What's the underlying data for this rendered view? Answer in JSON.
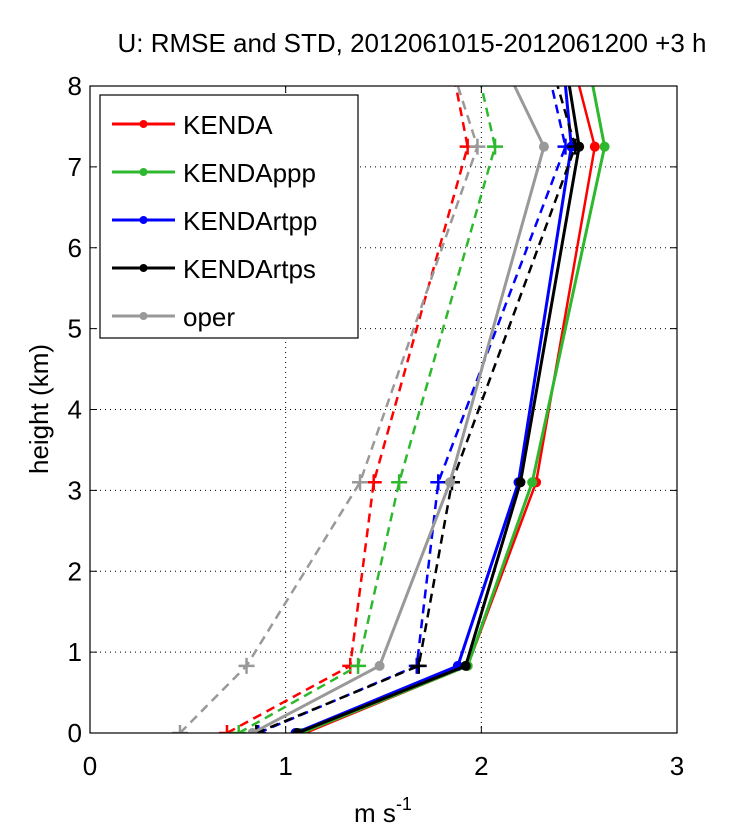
{
  "chart_data": {
    "type": "line",
    "title": "U: RMSE and STD, 2012061015-2012061200 +3 h",
    "xlabel": "m s",
    "xlabel_superscript": "-1",
    "ylabel": "height (km)",
    "xlim": [
      0,
      3
    ],
    "ylim": [
      0,
      8
    ],
    "xticks": [
      "0",
      "1",
      "2",
      "3"
    ],
    "yticks": [
      "0",
      "1",
      "2",
      "3",
      "4",
      "5",
      "6",
      "7",
      "8"
    ],
    "grid": true,
    "legend_position": "top-left",
    "levels": [
      0,
      0.83,
      3.1,
      7.25
    ],
    "series": [
      {
        "name": "KENDA",
        "color": "#ff0000",
        "rmse": [
          1.1,
          1.93,
          2.28,
          2.58
        ],
        "std": [
          0.7,
          1.33,
          1.45,
          1.93
        ],
        "rmse_top": 2.5,
        "std_top": 1.87
      },
      {
        "name": "KENDAppp",
        "color": "#2eb82e",
        "rmse": [
          1.08,
          1.93,
          2.26,
          2.63
        ],
        "std": [
          0.76,
          1.37,
          1.58,
          2.07
        ],
        "rmse_top": 2.57,
        "std_top": 2.0
      },
      {
        "name": "KENDArtpp",
        "color": "#0000ff",
        "rmse": [
          1.05,
          1.88,
          2.19,
          2.46
        ],
        "std": [
          0.86,
          1.67,
          1.78,
          2.43
        ],
        "rmse_top": 2.43,
        "std_top": 2.36
      },
      {
        "name": "KENDArtps",
        "color": "#000000",
        "rmse": [
          1.06,
          1.92,
          2.2,
          2.5
        ],
        "std": [
          0.85,
          1.68,
          1.85,
          2.48
        ],
        "rmse_top": 2.45,
        "std_top": 2.39
      },
      {
        "name": "oper",
        "color": "#999999",
        "rmse": [
          0.83,
          1.48,
          1.84,
          2.32
        ],
        "std": [
          0.46,
          0.8,
          1.38,
          1.98
        ],
        "rmse_top": 2.17,
        "std_top": 1.88
      }
    ]
  }
}
